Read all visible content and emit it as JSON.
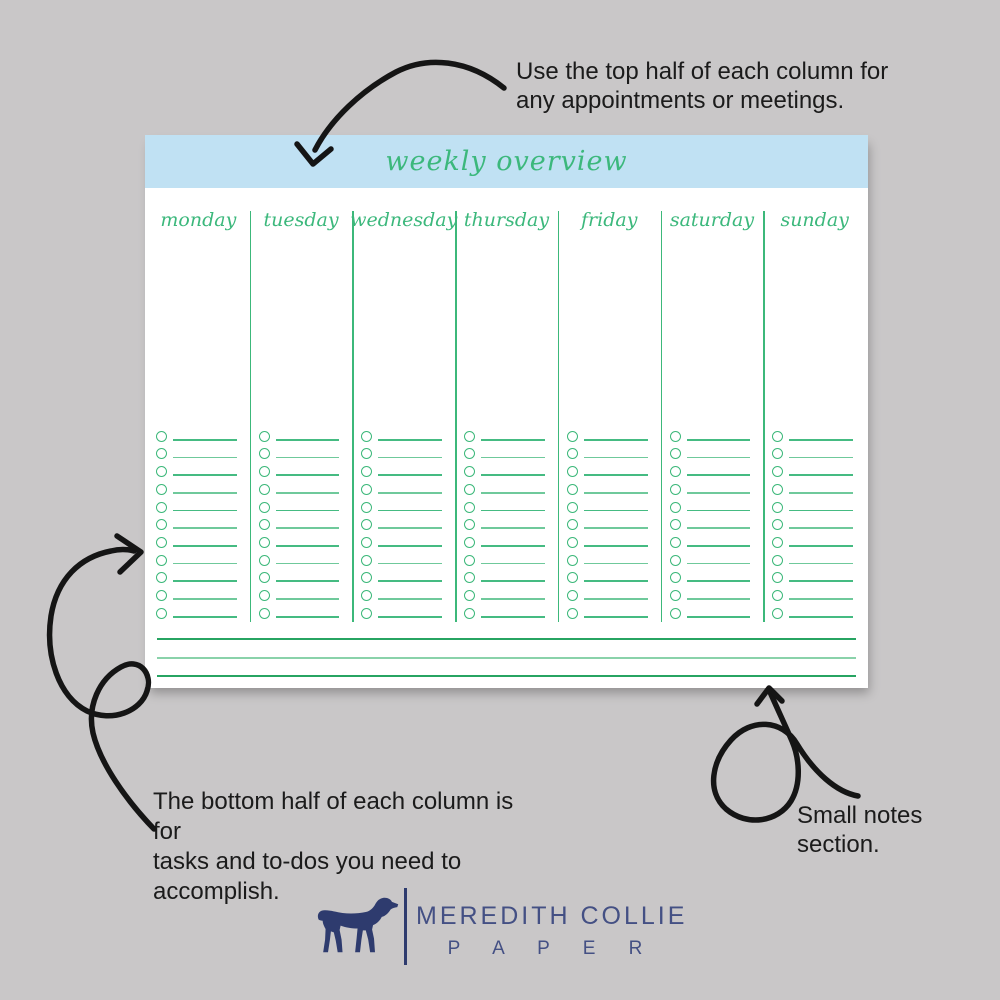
{
  "page": {
    "background": "#c9c7c8"
  },
  "planner": {
    "header": {
      "title": "weekly overview",
      "bg": "#c0e1f3",
      "text_color": "#3cb87c"
    },
    "days": [
      "monday",
      "tuesday",
      "wednesday",
      "thursday",
      "friday",
      "saturday",
      "sunday"
    ],
    "checklist_rows_per_column": 11,
    "notes": {
      "line_colors": [
        "#27a462",
        "#8ad2aa",
        "#27a462"
      ]
    },
    "colors": {
      "paper": "#ffffff",
      "green": "#3cb87a",
      "green_light": "#6fc99b"
    }
  },
  "annotations": {
    "top": {
      "lines": [
        "Use the top half of each column for",
        "any appointments or meetings."
      ]
    },
    "bottom_left": {
      "lines": [
        "The bottom half of each column is for",
        "tasks and to-dos you need to",
        "accomplish."
      ]
    },
    "bottom_right": {
      "text": "Small notes section."
    }
  },
  "logo": {
    "brand": "MEREDITH COLLIE",
    "sub": "P A P E R",
    "dog_icon": "dog-silhouette",
    "color": "#2e3b6e"
  }
}
